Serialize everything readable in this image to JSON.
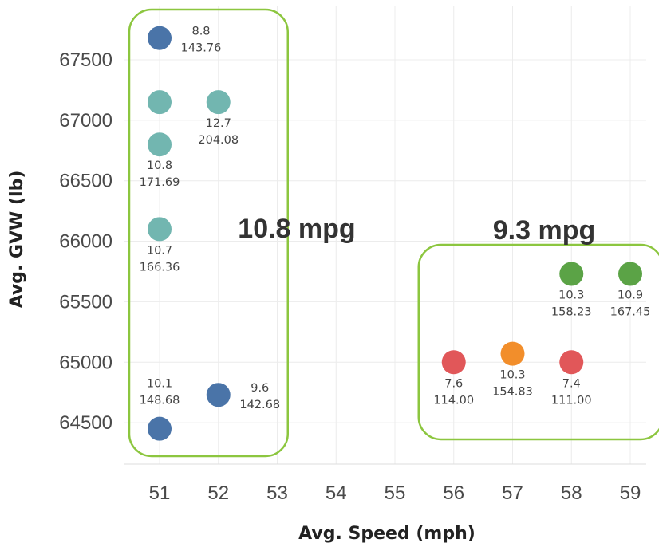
{
  "chart_data": {
    "type": "scatter",
    "xlabel": "Avg. Speed (mph)",
    "ylabel": "Avg. GVW (lb)",
    "x_ticks": [
      51,
      52,
      53,
      54,
      55,
      56,
      57,
      58,
      59
    ],
    "y_ticks": [
      64500,
      65000,
      65500,
      66000,
      66500,
      67000,
      67500
    ],
    "xlim": [
      50.4,
      59.4
    ],
    "ylim": [
      64200,
      67950
    ],
    "grid": true,
    "points": [
      {
        "x": 51,
        "y": 67680,
        "label1": "8.8",
        "label2": "143.76",
        "color": "#4a74a8",
        "label_pos": "right"
      },
      {
        "x": 51,
        "y": 67150,
        "label1": "",
        "label2": "",
        "color": "#72b6b0",
        "label_pos": "none"
      },
      {
        "x": 52,
        "y": 67150,
        "label1": "12.7",
        "label2": "204.08",
        "color": "#72b6b0",
        "label_pos": "below"
      },
      {
        "x": 51,
        "y": 66800,
        "label1": "10.8",
        "label2": "171.69",
        "color": "#72b6b0",
        "label_pos": "below"
      },
      {
        "x": 51,
        "y": 66100,
        "label1": "10.7",
        "label2": "166.36",
        "color": "#72b6b0",
        "label_pos": "below"
      },
      {
        "x": 51,
        "y": 64450,
        "label1": "10.1",
        "label2": "148.68",
        "color": "#4a74a8",
        "label_pos": "above"
      },
      {
        "x": 52,
        "y": 64730,
        "label1": "9.6",
        "label2": "142.68",
        "color": "#4a74a8",
        "label_pos": "right"
      },
      {
        "x": 58,
        "y": 65730,
        "label1": "10.3",
        "label2": "158.23",
        "color": "#5ba346",
        "label_pos": "below"
      },
      {
        "x": 59,
        "y": 65730,
        "label1": "10.9",
        "label2": "167.45",
        "color": "#5ba346",
        "label_pos": "below"
      },
      {
        "x": 56,
        "y": 65000,
        "label1": "7.6",
        "label2": "114.00",
        "color": "#e15759",
        "label_pos": "below"
      },
      {
        "x": 57,
        "y": 65070,
        "label1": "10.3",
        "label2": "154.83",
        "color": "#f28e2b",
        "label_pos": "below"
      },
      {
        "x": 58,
        "y": 65000,
        "label1": "7.4",
        "label2": "111.00",
        "color": "#e15759",
        "label_pos": "below"
      }
    ],
    "annotations": [
      {
        "text": "10.8 mpg"
      },
      {
        "text": "9.3 mpg"
      }
    ],
    "colors": {
      "group_box": "#8cc63f",
      "grid": "#ececec"
    }
  }
}
